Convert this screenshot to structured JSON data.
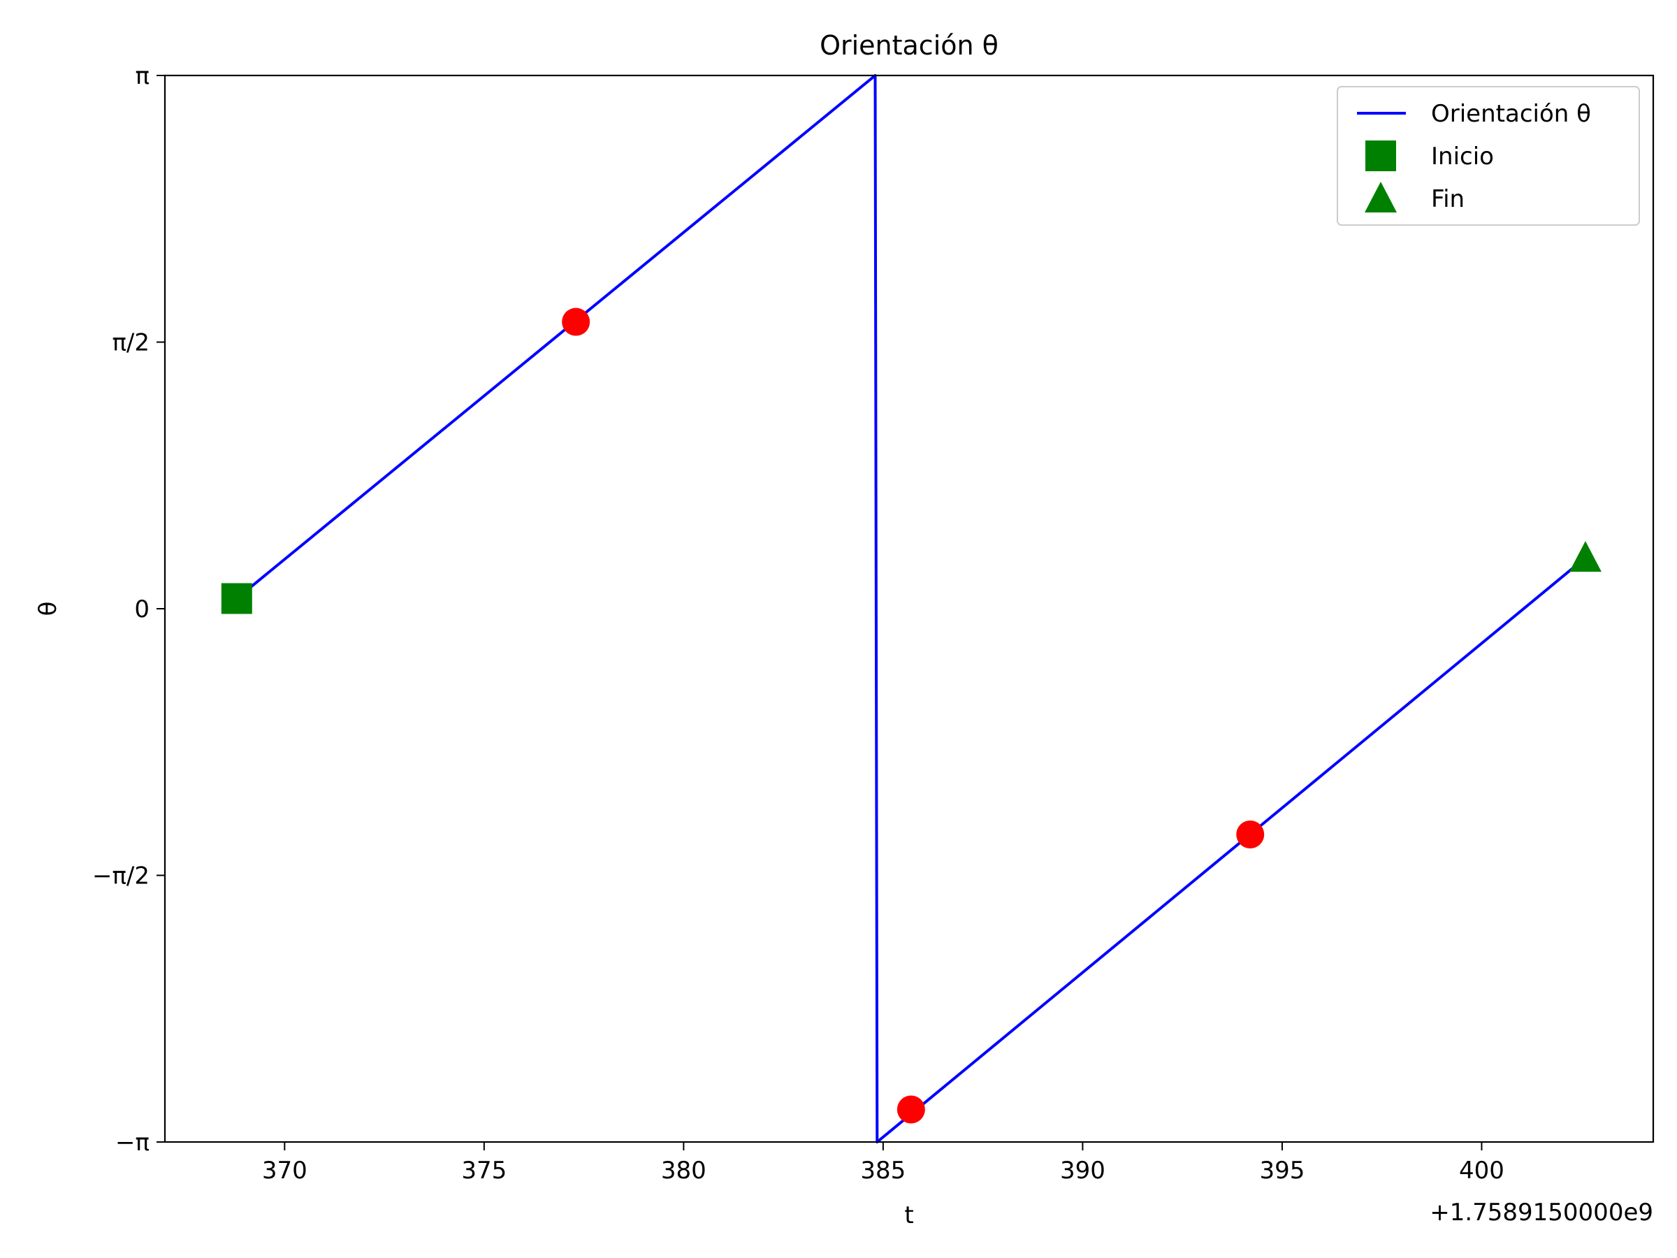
{
  "chart_data": {
    "type": "line",
    "title": "Orientación θ",
    "xlabel": "t",
    "ylabel": "θ",
    "x_offset_label": "+1.7589150000e9",
    "xlim": [
      367.0,
      404.3
    ],
    "ylim": [
      -3.14159,
      3.14159
    ],
    "x_ticks": [
      370,
      375,
      380,
      385,
      390,
      395,
      400
    ],
    "x_tick_labels": [
      "370",
      "375",
      "380",
      "385",
      "390",
      "395",
      "400"
    ],
    "y_ticks": [
      3.14159,
      1.5708,
      0,
      -1.5708,
      -3.14159
    ],
    "y_tick_labels": [
      "π",
      "π/2",
      "0",
      "−π/2",
      "−π"
    ],
    "grid": false,
    "legend_position": "top-right",
    "series": [
      {
        "name": "Orientación θ",
        "color": "#0000ff",
        "x": [
          368.8,
          384.8,
          384.85,
          402.6
        ],
        "y": [
          0.06,
          3.14159,
          -3.14159,
          0.3
        ]
      }
    ],
    "markers": [
      {
        "name": "Inicio",
        "shape": "square",
        "color": "#008000",
        "x": 368.8,
        "y": 0.06
      },
      {
        "name": "Fin",
        "shape": "triangle",
        "color": "#008000",
        "x": 402.6,
        "y": 0.3
      }
    ],
    "points": {
      "color": "#ff0000",
      "x": [
        377.3,
        385.7,
        394.2
      ],
      "y": [
        1.69,
        -2.95,
        -1.33
      ]
    },
    "legend": [
      {
        "label": "Orientación θ",
        "kind": "line",
        "color": "#0000ff"
      },
      {
        "label": "Inicio",
        "kind": "square",
        "color": "#008000"
      },
      {
        "label": "Fin",
        "kind": "triangle",
        "color": "#008000"
      }
    ]
  }
}
